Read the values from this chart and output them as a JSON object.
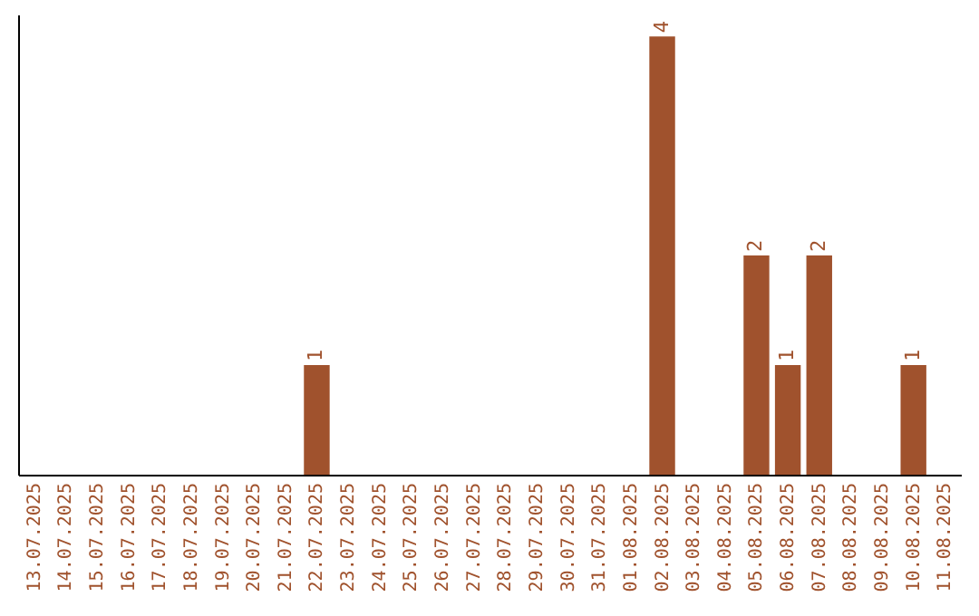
{
  "chart_data": {
    "type": "bar",
    "categories": [
      "13.07.2025",
      "14.07.2025",
      "15.07.2025",
      "16.07.2025",
      "17.07.2025",
      "18.07.2025",
      "19.07.2025",
      "20.07.2025",
      "21.07.2025",
      "22.07.2025",
      "23.07.2025",
      "24.07.2025",
      "25.07.2025",
      "26.07.2025",
      "27.07.2025",
      "28.07.2025",
      "29.07.2025",
      "30.07.2025",
      "31.07.2025",
      "01.08.2025",
      "02.08.2025",
      "03.08.2025",
      "04.08.2025",
      "05.08.2025",
      "06.08.2025",
      "07.08.2025",
      "08.08.2025",
      "09.08.2025",
      "10.08.2025",
      "11.08.2025"
    ],
    "values": [
      0,
      0,
      0,
      0,
      0,
      0,
      0,
      0,
      0,
      1,
      0,
      0,
      0,
      0,
      0,
      0,
      0,
      0,
      0,
      0,
      4,
      0,
      0,
      2,
      1,
      2,
      0,
      0,
      1,
      0
    ],
    "value_labels": [
      null,
      null,
      null,
      null,
      null,
      null,
      null,
      null,
      null,
      "1",
      null,
      null,
      null,
      null,
      null,
      null,
      null,
      null,
      null,
      null,
      "4",
      null,
      null,
      "2",
      "1",
      "2",
      null,
      null,
      "1",
      null
    ],
    "color": "#a0522d",
    "ylim": [
      0,
      4.2
    ],
    "tick_labels": "x",
    "grid": false
  }
}
